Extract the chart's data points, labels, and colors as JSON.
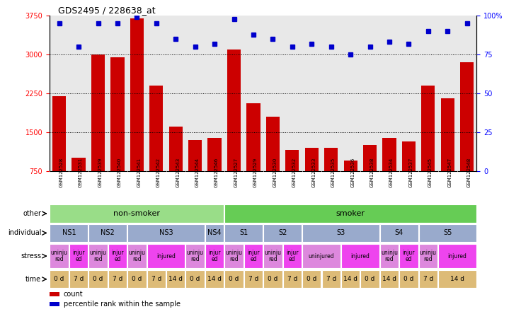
{
  "title": "GDS2495 / 228638_at",
  "samples": [
    "GSM122528",
    "GSM122531",
    "GSM122539",
    "GSM122540",
    "GSM122541",
    "GSM122542",
    "GSM122543",
    "GSM122544",
    "GSM122546",
    "GSM122527",
    "GSM122529",
    "GSM122530",
    "GSM122532",
    "GSM122533",
    "GSM122535",
    "GSM122536",
    "GSM122538",
    "GSM122534",
    "GSM122537",
    "GSM122545",
    "GSM122547",
    "GSM122548"
  ],
  "counts": [
    2200,
    1000,
    3000,
    2950,
    3700,
    2400,
    1600,
    1350,
    1380,
    3100,
    2050,
    1800,
    1150,
    1200,
    1200,
    950,
    1250,
    1380,
    1320,
    2400,
    2150,
    2850
  ],
  "percentiles": [
    95,
    80,
    95,
    95,
    99,
    95,
    85,
    80,
    82,
    98,
    88,
    85,
    80,
    82,
    80,
    75,
    80,
    83,
    82,
    90,
    90,
    95
  ],
  "ylim_left": [
    750,
    3750
  ],
  "ylim_right": [
    0,
    100
  ],
  "yticks_left": [
    750,
    1500,
    2250,
    3000,
    3750
  ],
  "yticks_right": [
    0,
    25,
    50,
    75,
    100
  ],
  "bar_color": "#cc0000",
  "dot_color": "#0000cc",
  "plot_bg_color": "#e8e8e8",
  "xtick_bg_color": "#d0d0d0",
  "other_row": {
    "label": "other",
    "groups": [
      {
        "text": "non-smoker",
        "start": 0,
        "end": 8,
        "color": "#99dd88"
      },
      {
        "text": "smoker",
        "start": 9,
        "end": 21,
        "color": "#66cc55"
      }
    ]
  },
  "individual_row": {
    "label": "individual",
    "groups": [
      {
        "text": "NS1",
        "start": 0,
        "end": 1,
        "color": "#99aacc"
      },
      {
        "text": "NS2",
        "start": 2,
        "end": 3,
        "color": "#99aacc"
      },
      {
        "text": "NS3",
        "start": 4,
        "end": 7,
        "color": "#99aacc"
      },
      {
        "text": "NS4",
        "start": 8,
        "end": 8,
        "color": "#99aacc"
      },
      {
        "text": "S1",
        "start": 9,
        "end": 10,
        "color": "#99aacc"
      },
      {
        "text": "S2",
        "start": 11,
        "end": 12,
        "color": "#99aacc"
      },
      {
        "text": "S3",
        "start": 13,
        "end": 16,
        "color": "#99aacc"
      },
      {
        "text": "S4",
        "start": 17,
        "end": 18,
        "color": "#99aacc"
      },
      {
        "text": "S5",
        "start": 19,
        "end": 21,
        "color": "#99aacc"
      }
    ]
  },
  "stress_row": {
    "label": "stress",
    "spans": [
      {
        "text": "uninju\nred",
        "start": 0,
        "end": 0,
        "color": "#dd88dd"
      },
      {
        "text": "injur\ned",
        "start": 1,
        "end": 1,
        "color": "#ee44ee"
      },
      {
        "text": "uninju\nred",
        "start": 2,
        "end": 2,
        "color": "#dd88dd"
      },
      {
        "text": "injur\ned",
        "start": 3,
        "end": 3,
        "color": "#ee44ee"
      },
      {
        "text": "uninju\nred",
        "start": 4,
        "end": 4,
        "color": "#dd88dd"
      },
      {
        "text": "injured",
        "start": 5,
        "end": 6,
        "color": "#ee44ee"
      },
      {
        "text": "uninju\nred",
        "start": 7,
        "end": 7,
        "color": "#dd88dd"
      },
      {
        "text": "injur\ned",
        "start": 8,
        "end": 8,
        "color": "#ee44ee"
      },
      {
        "text": "uninju\nred",
        "start": 9,
        "end": 9,
        "color": "#dd88dd"
      },
      {
        "text": "injur\ned",
        "start": 10,
        "end": 10,
        "color": "#ee44ee"
      },
      {
        "text": "uninju\nred",
        "start": 11,
        "end": 11,
        "color": "#dd88dd"
      },
      {
        "text": "injur\ned",
        "start": 12,
        "end": 12,
        "color": "#ee44ee"
      },
      {
        "text": "uninjured",
        "start": 13,
        "end": 14,
        "color": "#dd88dd"
      },
      {
        "text": "injured",
        "start": 15,
        "end": 16,
        "color": "#ee44ee"
      },
      {
        "text": "uninju\nred",
        "start": 17,
        "end": 17,
        "color": "#dd88dd"
      },
      {
        "text": "injur\ned",
        "start": 18,
        "end": 18,
        "color": "#ee44ee"
      },
      {
        "text": "uninju\nred",
        "start": 19,
        "end": 19,
        "color": "#dd88dd"
      },
      {
        "text": "injured",
        "start": 20,
        "end": 21,
        "color": "#ee44ee"
      }
    ]
  },
  "time_row": {
    "label": "time",
    "spans": [
      {
        "text": "0 d",
        "start": 0,
        "end": 0,
        "color": "#ddbb77"
      },
      {
        "text": "7 d",
        "start": 1,
        "end": 1,
        "color": "#ddbb77"
      },
      {
        "text": "0 d",
        "start": 2,
        "end": 2,
        "color": "#ddbb77"
      },
      {
        "text": "7 d",
        "start": 3,
        "end": 3,
        "color": "#ddbb77"
      },
      {
        "text": "0 d",
        "start": 4,
        "end": 4,
        "color": "#ddbb77"
      },
      {
        "text": "7 d",
        "start": 5,
        "end": 5,
        "color": "#ddbb77"
      },
      {
        "text": "14 d",
        "start": 6,
        "end": 6,
        "color": "#ddbb77"
      },
      {
        "text": "0 d",
        "start": 7,
        "end": 7,
        "color": "#ddbb77"
      },
      {
        "text": "14 d",
        "start": 8,
        "end": 8,
        "color": "#ddbb77"
      },
      {
        "text": "0 d",
        "start": 9,
        "end": 9,
        "color": "#ddbb77"
      },
      {
        "text": "7 d",
        "start": 10,
        "end": 10,
        "color": "#ddbb77"
      },
      {
        "text": "0 d",
        "start": 11,
        "end": 11,
        "color": "#ddbb77"
      },
      {
        "text": "7 d",
        "start": 12,
        "end": 12,
        "color": "#ddbb77"
      },
      {
        "text": "0 d",
        "start": 13,
        "end": 13,
        "color": "#ddbb77"
      },
      {
        "text": "7 d",
        "start": 14,
        "end": 14,
        "color": "#ddbb77"
      },
      {
        "text": "14 d",
        "start": 15,
        "end": 15,
        "color": "#ddbb77"
      },
      {
        "text": "0 d",
        "start": 16,
        "end": 16,
        "color": "#ddbb77"
      },
      {
        "text": "14 d",
        "start": 17,
        "end": 17,
        "color": "#ddbb77"
      },
      {
        "text": "0 d",
        "start": 18,
        "end": 18,
        "color": "#ddbb77"
      },
      {
        "text": "7 d",
        "start": 19,
        "end": 19,
        "color": "#ddbb77"
      },
      {
        "text": "14 d",
        "start": 20,
        "end": 21,
        "color": "#ddbb77"
      }
    ]
  },
  "legend": [
    {
      "color": "#cc0000",
      "label": "count"
    },
    {
      "color": "#0000cc",
      "label": "percentile rank within the sample"
    }
  ]
}
